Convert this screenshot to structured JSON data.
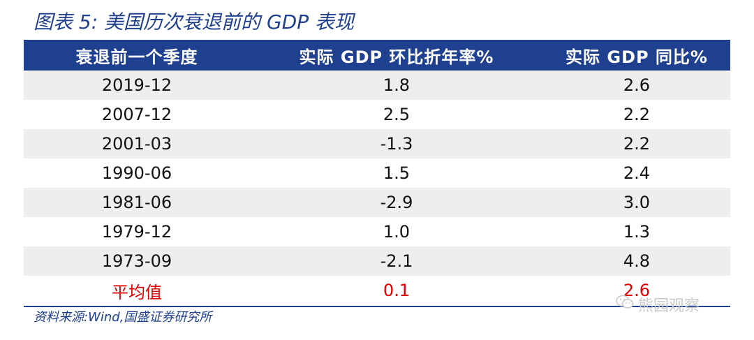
{
  "figure": {
    "title": "图表 5:  美国历次衰退前的 GDP 表现"
  },
  "table": {
    "headers": [
      "衰退前一个季度",
      "实际 GDP 环比折年率%",
      "实际 GDP 同比%"
    ],
    "rows": [
      [
        "2019-12",
        "1.8",
        "2.6"
      ],
      [
        "2007-12",
        "2.5",
        "2.2"
      ],
      [
        "2001-03",
        "-1.3",
        "2.2"
      ],
      [
        "1990-06",
        "1.5",
        "2.4"
      ],
      [
        "1981-06",
        "-2.9",
        "3.0"
      ],
      [
        "1979-12",
        "1.0",
        "1.3"
      ],
      [
        "1973-09",
        "-2.1",
        "4.8"
      ]
    ],
    "average": [
      "平均值",
      "0.1",
      "2.6"
    ]
  },
  "source": "资料来源:Wind,国盛证券研究所",
  "watermark": {
    "icon": "wechat-icon",
    "text": "熊园观察"
  },
  "colors": {
    "header_bg": "#1f3f8f",
    "alt_row_bg": "#eeeeee",
    "average_text": "#e10000",
    "title_text": "#1f3f8f"
  }
}
